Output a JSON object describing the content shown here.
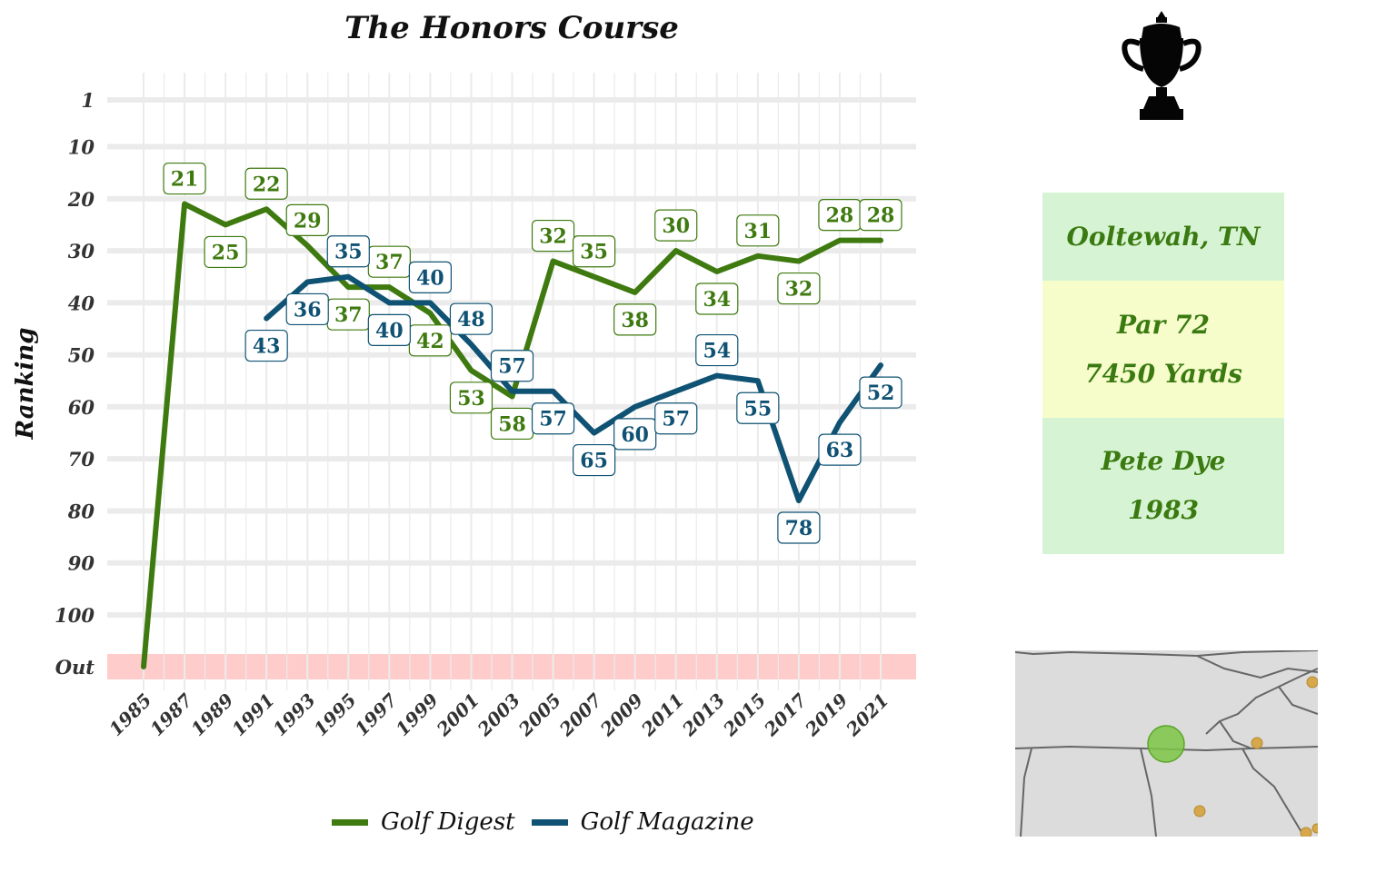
{
  "chart_data": {
    "type": "line",
    "title": "The Honors Course",
    "ylabel": "Ranking",
    "xlabel": "",
    "x_ticks": [
      1985,
      1987,
      1989,
      1991,
      1993,
      1995,
      1997,
      1999,
      2001,
      2003,
      2005,
      2007,
      2009,
      2011,
      2013,
      2015,
      2017,
      2019,
      2021
    ],
    "y_ticks": [
      "1",
      "10",
      "20",
      "30",
      "40",
      "50",
      "60",
      "70",
      "80",
      "90",
      "100",
      "Out"
    ],
    "y_reversed": true,
    "out_band_color": "#ffcccc",
    "legend_position": "bottom",
    "series": [
      {
        "name": "Golf Digest",
        "color": "#3e7a0f",
        "points": [
          {
            "x": 1985,
            "y": "Out",
            "label": ""
          },
          {
            "x": 1987,
            "y": 21,
            "label": "21"
          },
          {
            "x": 1989,
            "y": 25,
            "label": "25"
          },
          {
            "x": 1991,
            "y": 22,
            "label": "22"
          },
          {
            "x": 1993,
            "y": 29,
            "label": "29"
          },
          {
            "x": 1995,
            "y": 37,
            "label": "37"
          },
          {
            "x": 1997,
            "y": 37,
            "label": "37"
          },
          {
            "x": 1999,
            "y": 42,
            "label": "42"
          },
          {
            "x": 2001,
            "y": 53,
            "label": "53"
          },
          {
            "x": 2003,
            "y": 58,
            "label": "58"
          },
          {
            "x": 2005,
            "y": 32,
            "label": "32"
          },
          {
            "x": 2007,
            "y": 35,
            "label": "35"
          },
          {
            "x": 2009,
            "y": 38,
            "label": "38"
          },
          {
            "x": 2011,
            "y": 30,
            "label": "30"
          },
          {
            "x": 2013,
            "y": 34,
            "label": "34"
          },
          {
            "x": 2015,
            "y": 31,
            "label": "31"
          },
          {
            "x": 2017,
            "y": 32,
            "label": "32"
          },
          {
            "x": 2019,
            "y": 28,
            "label": "28"
          },
          {
            "x": 2021,
            "y": 28,
            "label": "28"
          }
        ]
      },
      {
        "name": "Golf Magazine",
        "color": "#0f5273",
        "points": [
          {
            "x": 1991,
            "y": 43,
            "label": "43"
          },
          {
            "x": 1993,
            "y": 36,
            "label": "36"
          },
          {
            "x": 1995,
            "y": 35,
            "label": "35"
          },
          {
            "x": 1997,
            "y": 40,
            "label": "40"
          },
          {
            "x": 1999,
            "y": 40,
            "label": "40"
          },
          {
            "x": 2001,
            "y": 48,
            "label": "48"
          },
          {
            "x": 2003,
            "y": 57,
            "label": "57"
          },
          {
            "x": 2005,
            "y": 57,
            "label": "57"
          },
          {
            "x": 2007,
            "y": 65,
            "label": "65"
          },
          {
            "x": 2009,
            "y": 60,
            "label": "60"
          },
          {
            "x": 2011,
            "y": 57,
            "label": "57"
          },
          {
            "x": 2013,
            "y": 54,
            "label": "54"
          },
          {
            "x": 2015,
            "y": 55,
            "label": "55"
          },
          {
            "x": 2017,
            "y": 78,
            "label": "78"
          },
          {
            "x": 2019,
            "y": 63,
            "label": "63"
          },
          {
            "x": 2021,
            "y": 52,
            "label": "52"
          }
        ]
      }
    ]
  },
  "info": {
    "location": "Ooltewah, TN",
    "par": "Par 72",
    "yards": "7450 Yards",
    "architect": "Pete Dye",
    "year": "1983",
    "location_bg": "#d6f4d3",
    "par_bg": "#f6fdcb",
    "text_color": "#3a7a10"
  },
  "icons": {
    "trophy": "trophy-icon",
    "map": "region-map"
  }
}
